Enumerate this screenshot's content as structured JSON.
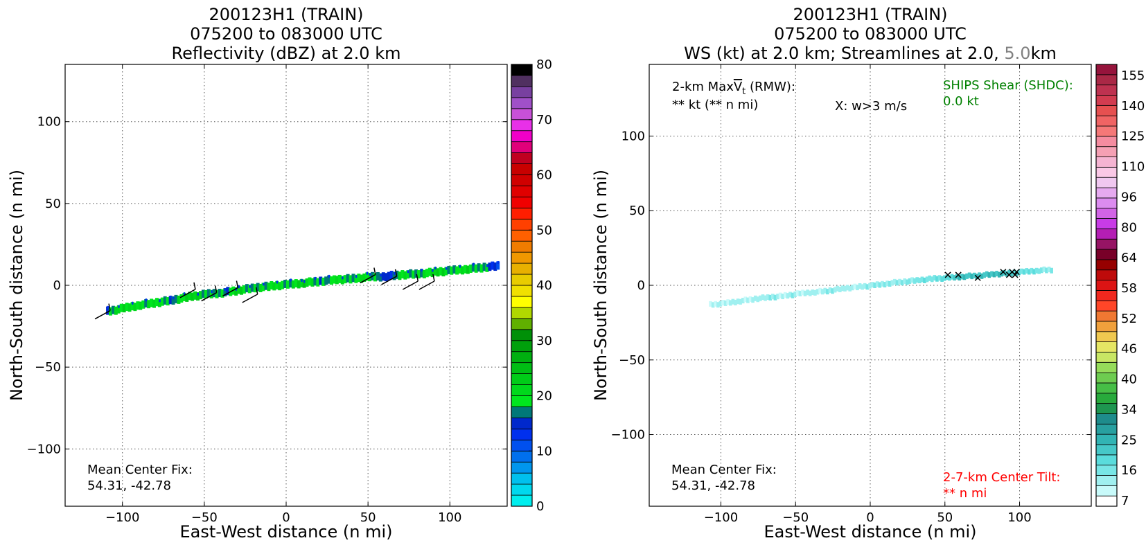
{
  "chart_data": [
    {
      "type": "heatmap",
      "panel": "left",
      "title_lines": [
        "200123H1 (TRAIN)",
        "075200 to 083000 UTC",
        "Reflectivity (dBZ) at 2.0 km"
      ],
      "xlabel": "East-West distance (n mi)",
      "ylabel": "North-South distance (n mi)",
      "xlim": [
        -135,
        135
      ],
      "ylim": [
        -135,
        135
      ],
      "xticks": [
        -100,
        -50,
        0,
        50,
        100
      ],
      "yticks": [
        -100,
        -50,
        0,
        50,
        100
      ],
      "xtick_labels": [
        "−100",
        "−50",
        "0",
        "50",
        "100"
      ],
      "ytick_labels": [
        "−100",
        "−50",
        "0",
        "50",
        "100"
      ],
      "grid": true,
      "annotations": [
        {
          "id": "mean-center-fix",
          "lines": [
            "Mean Center Fix:",
            "54.31, -42.78"
          ]
        }
      ],
      "colorbar": {
        "ticks": [
          0,
          10,
          20,
          30,
          40,
          50,
          60,
          70,
          80
        ],
        "colors": [
          "#00eeee",
          "#00d8ee",
          "#00c0ee",
          "#0096ee",
          "#0070ee",
          "#0050ee",
          "#0030ee",
          "#0028cc",
          "#007878",
          "#00e61e",
          "#00d81c",
          "#00cc18",
          "#00be14",
          "#00b010",
          "#00a00c",
          "#009008",
          "#60b000",
          "#b0d800",
          "#ffff00",
          "#f0e000",
          "#e8cc00",
          "#e8b000",
          "#f09800",
          "#f07c00",
          "#ff6000",
          "#ff4000",
          "#ff1e00",
          "#f00000",
          "#e00000",
          "#d00000",
          "#c80000",
          "#c00020",
          "#e0007a",
          "#f000c8",
          "#e830e8",
          "#c850d8",
          "#a050c8",
          "#7840a0",
          "#503060",
          "#000000"
        ]
      },
      "band": [
        {
          "x": -110,
          "y": -16.0,
          "v": 17
        },
        {
          "x": -100,
          "y": -14.0,
          "v": 22
        },
        {
          "x": -90,
          "y": -12.0,
          "v": 18
        },
        {
          "x": -80,
          "y": -10.5,
          "v": 20
        },
        {
          "x": -70,
          "y": -9.0,
          "v": 16
        },
        {
          "x": -60,
          "y": -7.0,
          "v": 22
        },
        {
          "x": -50,
          "y": -5.5,
          "v": 19
        },
        {
          "x": -40,
          "y": -4.5,
          "v": 16
        },
        {
          "x": -30,
          "y": -3.0,
          "v": 21
        },
        {
          "x": -20,
          "y": -1.5,
          "v": 17
        },
        {
          "x": -10,
          "y": -0.5,
          "v": 20
        },
        {
          "x": 0,
          "y": 0.5,
          "v": 18
        },
        {
          "x": 10,
          "y": 1.5,
          "v": 22
        },
        {
          "x": 20,
          "y": 2.5,
          "v": 16
        },
        {
          "x": 30,
          "y": 3.5,
          "v": 20
        },
        {
          "x": 40,
          "y": 4.0,
          "v": 18
        },
        {
          "x": 50,
          "y": 5.0,
          "v": 21
        },
        {
          "x": 60,
          "y": 5.5,
          "v": 13
        },
        {
          "x": 70,
          "y": 6.5,
          "v": 19
        },
        {
          "x": 80,
          "y": 7.0,
          "v": 17
        },
        {
          "x": 90,
          "y": 8.0,
          "v": 22
        },
        {
          "x": 100,
          "y": 9.0,
          "v": 18
        },
        {
          "x": 110,
          "y": 10.0,
          "v": 20
        },
        {
          "x": 120,
          "y": 11.0,
          "v": 17
        },
        {
          "x": 130,
          "y": 12.0,
          "v": 12
        }
      ],
      "barbs": [
        {
          "x": -110,
          "y": -18
        },
        {
          "x": -58,
          "y": -5
        },
        {
          "x": -45,
          "y": -7
        },
        {
          "x": -32,
          "y": -4
        },
        {
          "x": -20,
          "y": -8
        },
        {
          "x": 52,
          "y": 4
        },
        {
          "x": 65,
          "y": 3
        },
        {
          "x": 78,
          "y": 0
        },
        {
          "x": 88,
          "y": 0
        }
      ]
    },
    {
      "type": "heatmap",
      "panel": "right",
      "title_lines": [
        "200123H1 (TRAIN)",
        "075200 to 083000 UTC"
      ],
      "title_line3_parts": [
        "WS (kt) at 2.0 km; Streamlines at 2.0, ",
        "5.0",
        "km"
      ],
      "title_line3_colors": [
        "#000000",
        "#808080",
        "#000000"
      ],
      "xlabel": "East-West distance (n mi)",
      "ylabel": "North-South distance (n mi)",
      "xlim": [
        -148,
        148
      ],
      "ylim": [
        -148,
        148
      ],
      "xticks": [
        -100,
        -50,
        0,
        50,
        100
      ],
      "yticks": [
        -100,
        -50,
        0,
        50,
        100
      ],
      "xtick_labels": [
        "−100",
        "−50",
        "0",
        "50",
        "100"
      ],
      "ytick_labels": [
        "−100",
        "−50",
        "0",
        "50",
        "100"
      ],
      "grid": true,
      "annotations": [
        {
          "id": "max-vt",
          "lines": [
            "2-km Max",
            "** kt (** n mi)"
          ],
          "vt_symbol": "V",
          "vt_sub": "t",
          "vt_tail": " (RMW):"
        },
        {
          "id": "w-marker-legend",
          "lines": [
            "X: w>3 m/s"
          ]
        },
        {
          "id": "ships-shear",
          "lines": [
            "SHIPS Shear (SHDC):",
            "0.0 kt"
          ],
          "color": "#008000"
        },
        {
          "id": "mean-center-fix",
          "lines": [
            "Mean Center Fix:",
            "54.31, -42.78"
          ]
        },
        {
          "id": "center-tilt",
          "lines": [
            "2-7-km Center Tilt:",
            "** n mi"
          ],
          "color": "#ff0000"
        }
      ],
      "colorbar": {
        "tick_labels": [
          "7",
          "16",
          "25",
          "34",
          "40",
          "46",
          "52",
          "58",
          "64",
          "80",
          "96",
          "110",
          "125",
          "140",
          "155"
        ],
        "colors": [
          "#ffffff",
          "#c8fafa",
          "#a0f0f0",
          "#78e6e6",
          "#5adcdc",
          "#46c8c8",
          "#32b4b4",
          "#28a0a0",
          "#1e8c8c",
          "#1e9650",
          "#28aa3c",
          "#46be46",
          "#6ecc50",
          "#96dc5a",
          "#c8e664",
          "#e6e664",
          "#f0c850",
          "#f0a03c",
          "#f07832",
          "#ff4628",
          "#f0281e",
          "#dc1414",
          "#be0a0a",
          "#960000",
          "#780028",
          "#961464",
          "#b41eb4",
          "#c83ce6",
          "#d264e6",
          "#dc8cf0",
          "#e6aaf0",
          "#f0c8f0",
          "#fac8e6",
          "#f5b4d2",
          "#f5a0b4",
          "#f58ca0",
          "#f57878",
          "#f06464",
          "#e65050",
          "#d23c50",
          "#be3250",
          "#aa2846",
          "#96143c"
        ]
      },
      "band": [
        {
          "x": -108,
          "y": -13,
          "v": 12
        },
        {
          "x": -98,
          "y": -12,
          "v": 14
        },
        {
          "x": -88,
          "y": -10.5,
          "v": 12
        },
        {
          "x": -78,
          "y": -9,
          "v": 13
        },
        {
          "x": -68,
          "y": -8,
          "v": 15
        },
        {
          "x": -58,
          "y": -7,
          "v": 13
        },
        {
          "x": -48,
          "y": -5.5,
          "v": 14
        },
        {
          "x": -38,
          "y": -4.5,
          "v": 12
        },
        {
          "x": -28,
          "y": -3.5,
          "v": 15
        },
        {
          "x": -18,
          "y": -2,
          "v": 13
        },
        {
          "x": -8,
          "y": -1,
          "v": 14
        },
        {
          "x": 2,
          "y": 0,
          "v": 16
        },
        {
          "x": 12,
          "y": 1.5,
          "v": 14
        },
        {
          "x": 22,
          "y": 2.5,
          "v": 15
        },
        {
          "x": 32,
          "y": 3.5,
          "v": 17
        },
        {
          "x": 42,
          "y": 4.5,
          "v": 18
        },
        {
          "x": 52,
          "y": 5,
          "v": 22
        },
        {
          "x": 62,
          "y": 6,
          "v": 26
        },
        {
          "x": 72,
          "y": 6.5,
          "v": 24
        },
        {
          "x": 82,
          "y": 7.5,
          "v": 27
        },
        {
          "x": 92,
          "y": 8,
          "v": 25
        },
        {
          "x": 102,
          "y": 9,
          "v": 20
        },
        {
          "x": 112,
          "y": 10,
          "v": 16
        },
        {
          "x": 122,
          "y": 10.5,
          "v": 14
        }
      ],
      "w_markers": [
        {
          "x": 52,
          "y": 7
        },
        {
          "x": 59,
          "y": 7
        },
        {
          "x": 72,
          "y": 5
        },
        {
          "x": 89,
          "y": 9
        },
        {
          "x": 93,
          "y": 7
        },
        {
          "x": 95,
          "y": 9
        },
        {
          "x": 97,
          "y": 7
        },
        {
          "x": 98,
          "y": 9
        }
      ]
    }
  ]
}
